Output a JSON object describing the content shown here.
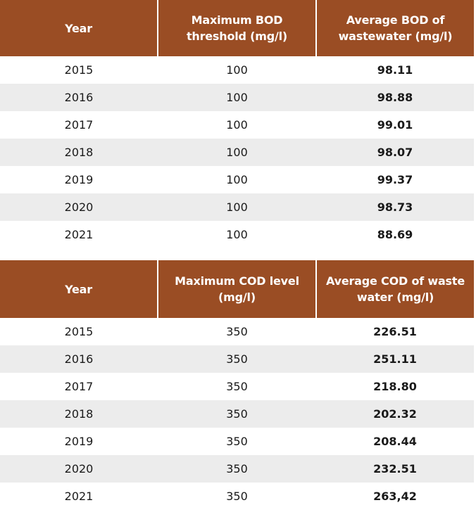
{
  "bod_table": {
    "headers": [
      "Year",
      "Maximum BOD threshold (mg/l)",
      "Average BOD of wastewater (mg/l)"
    ],
    "rows": [
      [
        "2015",
        "100",
        "98.11"
      ],
      [
        "2016",
        "100",
        "98.88"
      ],
      [
        "2017",
        "100",
        "99.01"
      ],
      [
        "2018",
        "100",
        "98.07"
      ],
      [
        "2019",
        "100",
        "99.37"
      ],
      [
        "2020",
        "100",
        "98.73"
      ],
      [
        "2021",
        "100",
        "88.69"
      ]
    ]
  },
  "cod_table": {
    "headers": [
      "Year",
      "Maximum COD level (mg/l)",
      "Average COD of waste water (mg/l)"
    ],
    "rows": [
      [
        "2015",
        "350",
        "226.51"
      ],
      [
        "2016",
        "350",
        "251.11"
      ],
      [
        "2017",
        "350",
        "218.80"
      ],
      [
        "2018",
        "350",
        "202.32"
      ],
      [
        "2019",
        "350",
        "208.44"
      ],
      [
        "2020",
        "350",
        "232.51"
      ],
      [
        "2021",
        "350",
        "263,42"
      ]
    ]
  },
  "colors": {
    "header_bg": "#9a4d24",
    "header_text": "#ffffff",
    "stripe": "#ececec"
  }
}
